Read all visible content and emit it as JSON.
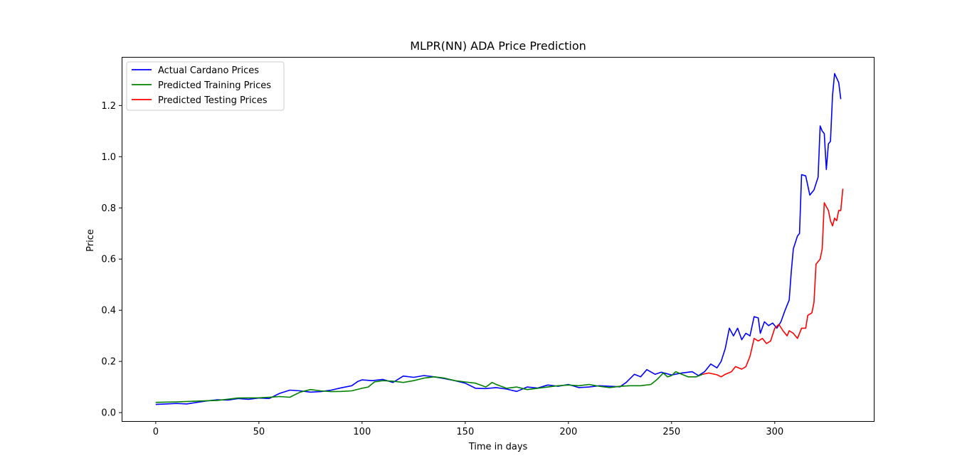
{
  "chart_data": {
    "type": "line",
    "title": "MLPR(NN) ADA Price Prediction",
    "xlabel": "Time in days",
    "ylabel": "Price",
    "xlim": [
      -16.5,
      348
    ],
    "ylim": [
      -0.033,
      1.39
    ],
    "xticks": [
      0,
      50,
      100,
      150,
      200,
      250,
      300
    ],
    "yticks": [
      0.0,
      0.2,
      0.4,
      0.6,
      0.8,
      1.0,
      1.2
    ],
    "ytick_labels": [
      "0.0",
      "0.2",
      "0.4",
      "0.6",
      "0.8",
      "1.0",
      "1.2"
    ],
    "grid": false,
    "legend_position": "top-left",
    "series": [
      {
        "name": "Actual Cardano Prices",
        "color": "#0000ff",
        "points": [
          [
            0,
            0.032
          ],
          [
            5,
            0.034
          ],
          [
            10,
            0.036
          ],
          [
            15,
            0.034
          ],
          [
            20,
            0.04
          ],
          [
            25,
            0.046
          ],
          [
            30,
            0.05
          ],
          [
            35,
            0.049
          ],
          [
            40,
            0.055
          ],
          [
            45,
            0.052
          ],
          [
            50,
            0.057
          ],
          [
            55,
            0.055
          ],
          [
            60,
            0.075
          ],
          [
            65,
            0.088
          ],
          [
            70,
            0.085
          ],
          [
            75,
            0.08
          ],
          [
            80,
            0.082
          ],
          [
            85,
            0.088
          ],
          [
            90,
            0.097
          ],
          [
            95,
            0.105
          ],
          [
            98,
            0.122
          ],
          [
            100,
            0.128
          ],
          [
            105,
            0.125
          ],
          [
            110,
            0.13
          ],
          [
            115,
            0.118
          ],
          [
            120,
            0.143
          ],
          [
            125,
            0.138
          ],
          [
            130,
            0.145
          ],
          [
            135,
            0.14
          ],
          [
            140,
            0.133
          ],
          [
            145,
            0.125
          ],
          [
            150,
            0.115
          ],
          [
            155,
            0.095
          ],
          [
            160,
            0.094
          ],
          [
            165,
            0.098
          ],
          [
            170,
            0.092
          ],
          [
            175,
            0.083
          ],
          [
            180,
            0.1
          ],
          [
            185,
            0.096
          ],
          [
            190,
            0.108
          ],
          [
            195,
            0.103
          ],
          [
            200,
            0.11
          ],
          [
            205,
            0.098
          ],
          [
            210,
            0.1
          ],
          [
            215,
            0.105
          ],
          [
            220,
            0.103
          ],
          [
            225,
            0.101
          ],
          [
            228,
            0.118
          ],
          [
            232,
            0.15
          ],
          [
            235,
            0.14
          ],
          [
            238,
            0.168
          ],
          [
            242,
            0.15
          ],
          [
            245,
            0.158
          ],
          [
            250,
            0.147
          ],
          [
            255,
            0.155
          ],
          [
            260,
            0.16
          ],
          [
            263,
            0.145
          ],
          [
            266,
            0.16
          ],
          [
            269,
            0.19
          ],
          [
            272,
            0.175
          ],
          [
            274,
            0.2
          ],
          [
            276,
            0.25
          ],
          [
            278,
            0.33
          ],
          [
            280,
            0.3
          ],
          [
            282,
            0.33
          ],
          [
            284,
            0.285
          ],
          [
            286,
            0.31
          ],
          [
            288,
            0.3
          ],
          [
            290,
            0.375
          ],
          [
            292,
            0.37
          ],
          [
            293,
            0.31
          ],
          [
            295,
            0.355
          ],
          [
            297,
            0.34
          ],
          [
            299,
            0.35
          ],
          [
            301,
            0.33
          ],
          [
            303,
            0.355
          ],
          [
            305,
            0.4
          ],
          [
            307,
            0.44
          ],
          [
            308,
            0.55
          ],
          [
            309,
            0.64
          ],
          [
            311,
            0.69
          ],
          [
            312,
            0.7
          ],
          [
            313,
            0.93
          ],
          [
            315,
            0.925
          ],
          [
            317,
            0.85
          ],
          [
            319,
            0.87
          ],
          [
            321,
            0.92
          ],
          [
            322,
            1.12
          ],
          [
            323,
            1.1
          ],
          [
            324,
            1.09
          ],
          [
            325,
            0.95
          ],
          [
            326,
            1.05
          ],
          [
            327,
            1.06
          ],
          [
            328,
            1.24
          ],
          [
            329,
            1.325
          ],
          [
            331,
            1.29
          ],
          [
            332,
            1.225
          ]
        ]
      },
      {
        "name": "Predicted Training Prices",
        "color": "#008000",
        "points": [
          [
            0,
            0.04
          ],
          [
            10,
            0.042
          ],
          [
            20,
            0.045
          ],
          [
            30,
            0.048
          ],
          [
            40,
            0.057
          ],
          [
            50,
            0.058
          ],
          [
            55,
            0.06
          ],
          [
            60,
            0.063
          ],
          [
            65,
            0.06
          ],
          [
            70,
            0.08
          ],
          [
            75,
            0.09
          ],
          [
            80,
            0.085
          ],
          [
            85,
            0.082
          ],
          [
            90,
            0.083
          ],
          [
            95,
            0.085
          ],
          [
            100,
            0.095
          ],
          [
            103,
            0.1
          ],
          [
            106,
            0.12
          ],
          [
            110,
            0.125
          ],
          [
            115,
            0.123
          ],
          [
            120,
            0.118
          ],
          [
            125,
            0.125
          ],
          [
            130,
            0.135
          ],
          [
            135,
            0.14
          ],
          [
            140,
            0.135
          ],
          [
            145,
            0.125
          ],
          [
            150,
            0.12
          ],
          [
            155,
            0.115
          ],
          [
            160,
            0.1
          ],
          [
            163,
            0.118
          ],
          [
            165,
            0.11
          ],
          [
            170,
            0.095
          ],
          [
            175,
            0.1
          ],
          [
            180,
            0.09
          ],
          [
            185,
            0.095
          ],
          [
            190,
            0.1
          ],
          [
            195,
            0.105
          ],
          [
            200,
            0.108
          ],
          [
            205,
            0.105
          ],
          [
            210,
            0.11
          ],
          [
            215,
            0.103
          ],
          [
            220,
            0.098
          ],
          [
            225,
            0.103
          ],
          [
            230,
            0.105
          ],
          [
            235,
            0.105
          ],
          [
            240,
            0.11
          ],
          [
            243,
            0.13
          ],
          [
            246,
            0.155
          ],
          [
            248,
            0.14
          ],
          [
            250,
            0.145
          ],
          [
            252,
            0.16
          ],
          [
            255,
            0.15
          ],
          [
            258,
            0.14
          ],
          [
            262,
            0.14
          ],
          [
            265,
            0.15
          ]
        ]
      },
      {
        "name": "Predicted Testing Prices",
        "color": "#ff0000",
        "points": [
          [
            265,
            0.15
          ],
          [
            268,
            0.155
          ],
          [
            272,
            0.148
          ],
          [
            274,
            0.14
          ],
          [
            276,
            0.15
          ],
          [
            279,
            0.16
          ],
          [
            281,
            0.18
          ],
          [
            284,
            0.17
          ],
          [
            286,
            0.18
          ],
          [
            288,
            0.22
          ],
          [
            290,
            0.29
          ],
          [
            292,
            0.28
          ],
          [
            294,
            0.29
          ],
          [
            296,
            0.27
          ],
          [
            298,
            0.28
          ],
          [
            300,
            0.33
          ],
          [
            302,
            0.345
          ],
          [
            304,
            0.32
          ],
          [
            306,
            0.3
          ],
          [
            307,
            0.32
          ],
          [
            309,
            0.31
          ],
          [
            311,
            0.29
          ],
          [
            313,
            0.33
          ],
          [
            315,
            0.33
          ],
          [
            316,
            0.38
          ],
          [
            318,
            0.39
          ],
          [
            319,
            0.43
          ],
          [
            320,
            0.58
          ],
          [
            322,
            0.6
          ],
          [
            323,
            0.64
          ],
          [
            324,
            0.82
          ],
          [
            326,
            0.79
          ],
          [
            327,
            0.75
          ],
          [
            328,
            0.73
          ],
          [
            329,
            0.76
          ],
          [
            330,
            0.75
          ],
          [
            331,
            0.79
          ],
          [
            332,
            0.79
          ],
          [
            333,
            0.875
          ]
        ]
      }
    ]
  }
}
